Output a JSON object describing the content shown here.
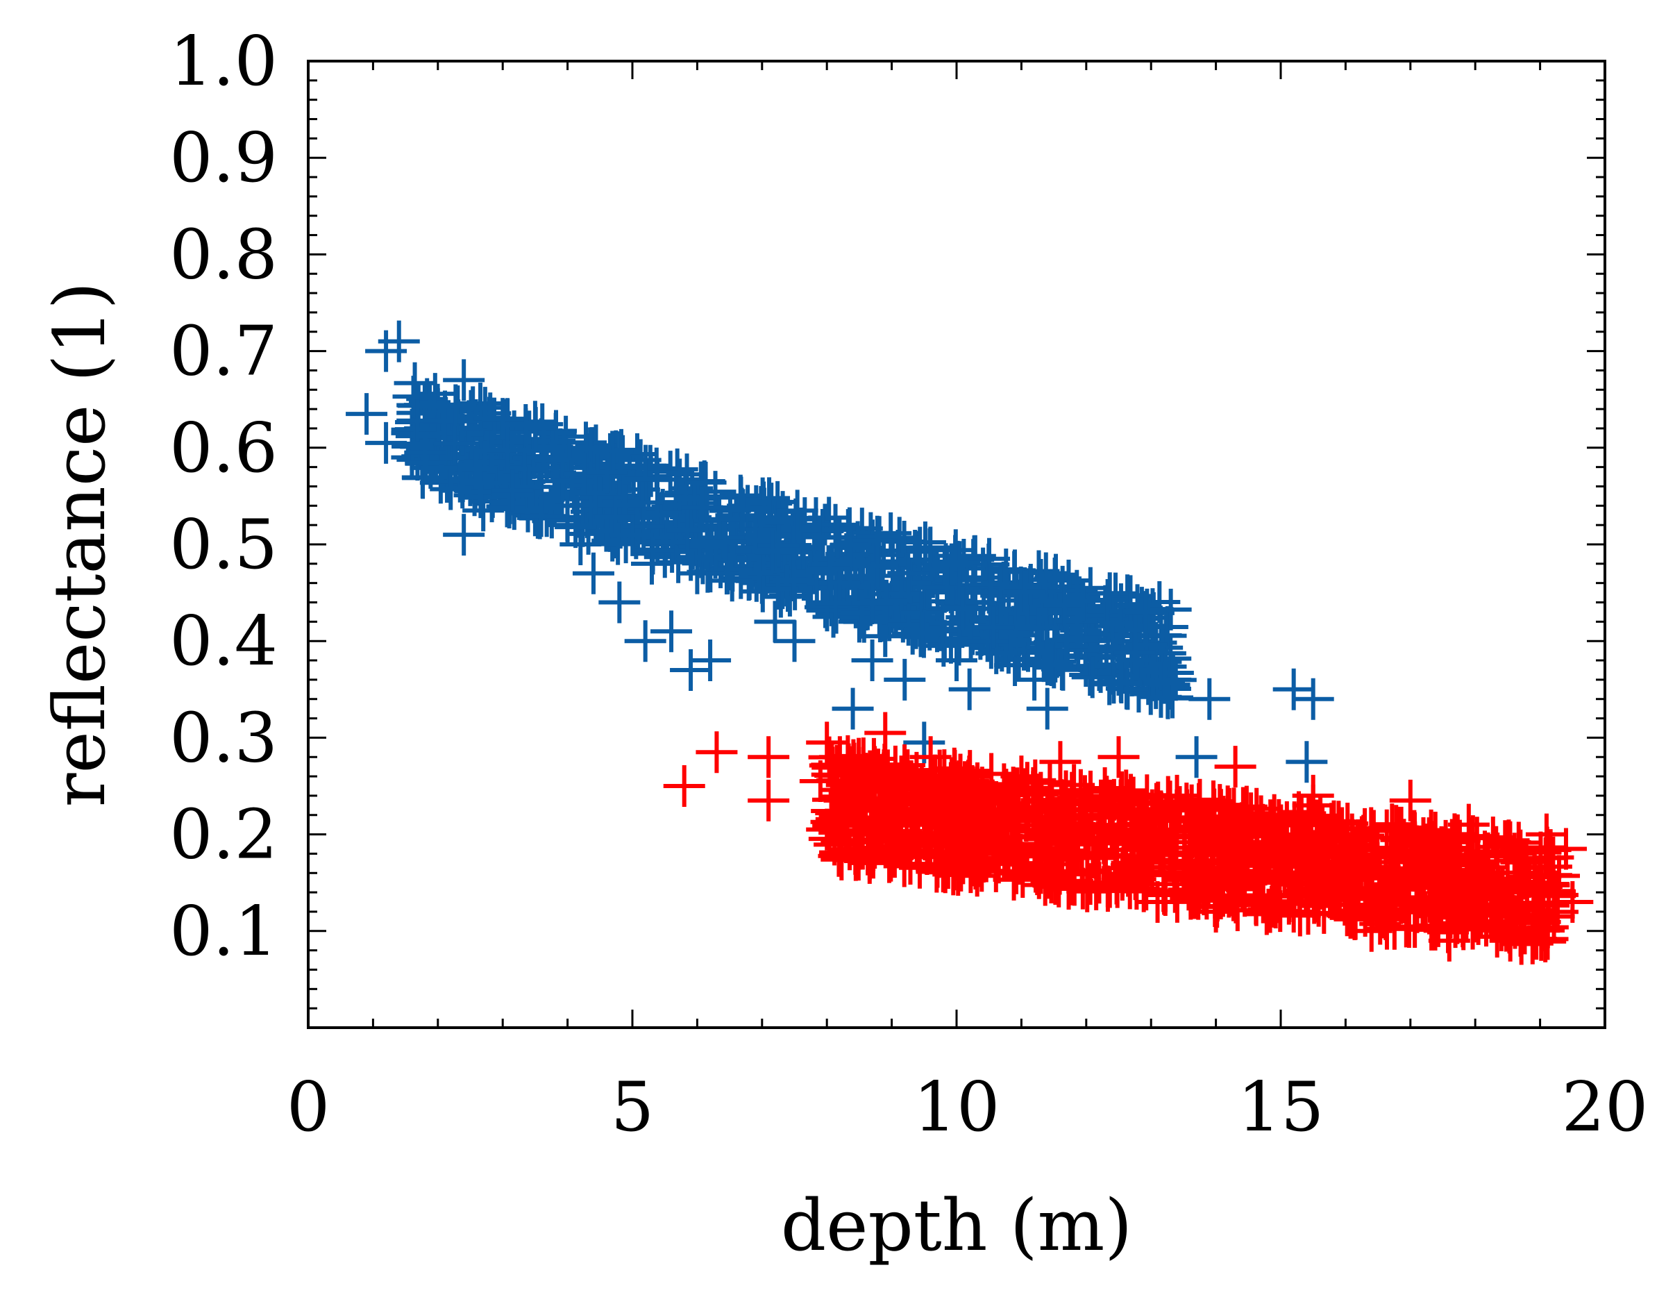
{
  "chart_data": {
    "type": "scatter",
    "title": "",
    "xlabel": "depth (m)",
    "ylabel": "reflectance (1)",
    "xlim": [
      0,
      20
    ],
    "ylim": [
      0.0,
      1.0
    ],
    "x_ticks": [
      "0",
      "5",
      "10",
      "15",
      "20"
    ],
    "y_ticks": [
      "0.1",
      "0.2",
      "0.3",
      "0.4",
      "0.5",
      "0.6",
      "0.7",
      "0.8",
      "0.9",
      "1.0"
    ],
    "grid": false,
    "marker": "+",
    "series": [
      {
        "name": "blue",
        "color": "#0c5da5",
        "points": [
          [
            0.9,
            0.635
          ],
          [
            1.2,
            0.7
          ],
          [
            1.4,
            0.71
          ],
          [
            1.2,
            0.605
          ],
          [
            2.4,
            0.67
          ],
          [
            1.6,
            0.59
          ],
          [
            1.8,
            0.62
          ],
          [
            2.0,
            0.64
          ],
          [
            2.2,
            0.61
          ],
          [
            2.1,
            0.575
          ],
          [
            1.9,
            0.585
          ],
          [
            2.4,
            0.6
          ],
          [
            2.6,
            0.58
          ],
          [
            2.8,
            0.61
          ],
          [
            3.0,
            0.57
          ],
          [
            3.2,
            0.55
          ],
          [
            3.4,
            0.59
          ],
          [
            2.4,
            0.51
          ],
          [
            2.7,
            0.535
          ],
          [
            3.5,
            0.53
          ],
          [
            3.8,
            0.54
          ],
          [
            4.0,
            0.52
          ],
          [
            4.2,
            0.5
          ],
          [
            4.5,
            0.56
          ],
          [
            4.7,
            0.57
          ],
          [
            4.4,
            0.47
          ],
          [
            4.8,
            0.44
          ],
          [
            5.0,
            0.52
          ],
          [
            5.3,
            0.48
          ],
          [
            5.5,
            0.5
          ],
          [
            5.2,
            0.4
          ],
          [
            5.6,
            0.41
          ],
          [
            5.9,
            0.37
          ],
          [
            6.2,
            0.38
          ],
          [
            6.0,
            0.47
          ],
          [
            6.3,
            0.5
          ],
          [
            6.6,
            0.53
          ],
          [
            6.8,
            0.49
          ],
          [
            7.0,
            0.46
          ],
          [
            7.2,
            0.42
          ],
          [
            7.5,
            0.4
          ],
          [
            7.8,
            0.47
          ],
          [
            8.0,
            0.44
          ],
          [
            8.3,
            0.49
          ],
          [
            8.5,
            0.42
          ],
          [
            8.4,
            0.33
          ],
          [
            8.7,
            0.38
          ],
          [
            9.0,
            0.43
          ],
          [
            9.2,
            0.36
          ],
          [
            9.5,
            0.46
          ],
          [
            9.7,
            0.41
          ],
          [
            10.0,
            0.38
          ],
          [
            10.2,
            0.35
          ],
          [
            10.5,
            0.45
          ],
          [
            10.7,
            0.39
          ],
          [
            11.0,
            0.42
          ],
          [
            11.2,
            0.36
          ],
          [
            11.4,
            0.33
          ],
          [
            11.8,
            0.44
          ],
          [
            12.0,
            0.4
          ],
          [
            12.2,
            0.37
          ],
          [
            12.4,
            0.42
          ],
          [
            12.7,
            0.4
          ],
          [
            13.0,
            0.38
          ],
          [
            13.3,
            0.36
          ],
          [
            13.9,
            0.34
          ],
          [
            15.2,
            0.35
          ],
          [
            15.5,
            0.34
          ],
          [
            9.5,
            0.295
          ],
          [
            13.7,
            0.28
          ],
          [
            15.4,
            0.275
          ],
          [
            3.6,
            0.575
          ],
          [
            4.1,
            0.555
          ],
          [
            4.9,
            0.535
          ],
          [
            5.7,
            0.515
          ],
          [
            6.5,
            0.475
          ],
          [
            7.3,
            0.455
          ],
          [
            8.1,
            0.425
          ],
          [
            8.9,
            0.405
          ],
          [
            9.8,
            0.395
          ],
          [
            10.9,
            0.375
          ],
          [
            11.6,
            0.385
          ],
          [
            12.5,
            0.365
          ]
        ]
      },
      {
        "name": "red",
        "color": "#ff0000",
        "points": [
          [
            5.8,
            0.25
          ],
          [
            6.3,
            0.285
          ],
          [
            7.1,
            0.28
          ],
          [
            7.1,
            0.235
          ],
          [
            7.9,
            0.255
          ],
          [
            8.0,
            0.295
          ],
          [
            8.2,
            0.28
          ],
          [
            8.9,
            0.305
          ],
          [
            8.0,
            0.205
          ],
          [
            8.5,
            0.185
          ],
          [
            9.0,
            0.18
          ],
          [
            8.6,
            0.23
          ],
          [
            9.3,
            0.255
          ],
          [
            9.6,
            0.28
          ],
          [
            9.8,
            0.22
          ],
          [
            10.1,
            0.17
          ],
          [
            10.4,
            0.24
          ],
          [
            10.7,
            0.19
          ],
          [
            11.0,
            0.26
          ],
          [
            11.3,
            0.16
          ],
          [
            11.6,
            0.275
          ],
          [
            11.9,
            0.21
          ],
          [
            12.2,
            0.15
          ],
          [
            12.5,
            0.28
          ],
          [
            12.8,
            0.19
          ],
          [
            13.1,
            0.13
          ],
          [
            13.4,
            0.24
          ],
          [
            13.7,
            0.17
          ],
          [
            14.0,
            0.12
          ],
          [
            14.3,
            0.27
          ],
          [
            14.6,
            0.15
          ],
          [
            14.9,
            0.22
          ],
          [
            15.2,
            0.12
          ],
          [
            15.5,
            0.24
          ],
          [
            15.8,
            0.14
          ],
          [
            16.1,
            0.2
          ],
          [
            16.4,
            0.1
          ],
          [
            16.7,
            0.18
          ],
          [
            17.0,
            0.235
          ],
          [
            17.3,
            0.13
          ],
          [
            17.6,
            0.09
          ],
          [
            17.9,
            0.21
          ],
          [
            18.2,
            0.16
          ],
          [
            18.5,
            0.11
          ],
          [
            18.8,
            0.14
          ],
          [
            19.1,
            0.2
          ],
          [
            19.4,
            0.185
          ],
          [
            19.5,
            0.13
          ],
          [
            18.7,
            0.095
          ],
          [
            15.5,
            0.23
          ],
          [
            10.0,
            0.205
          ],
          [
            11.4,
            0.195
          ],
          [
            12.9,
            0.175
          ],
          [
            14.2,
            0.165
          ],
          [
            15.9,
            0.155
          ],
          [
            17.1,
            0.145
          ],
          [
            18.3,
            0.135
          ],
          [
            13.6,
            0.205
          ],
          [
            16.6,
            0.135
          ],
          [
            19.0,
            0.15
          ]
        ]
      }
    ]
  }
}
